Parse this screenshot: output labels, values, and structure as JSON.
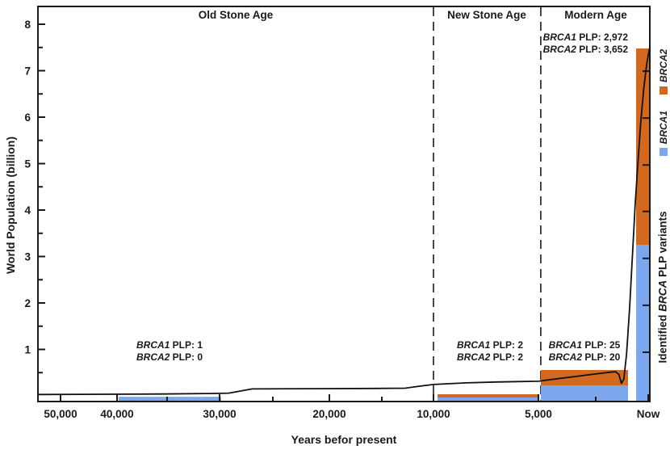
{
  "figure": {
    "era_labels": {
      "old": "Old Stone Age",
      "new": "New Stone Age",
      "modern": "Modern Age"
    }
  },
  "axes": {
    "x_title": "Years befor present",
    "y_title": "World Population (billion)",
    "y2_prefix": "Identified ",
    "y2_italic": "BRCA",
    "y2_suffix": " PLP variants"
  },
  "legend": [
    {
      "label": "BRCA2",
      "color": "#d2691e"
    },
    {
      "label": "BRCA1",
      "color": "#7da7ec"
    }
  ],
  "annotations": {
    "old": {
      "line1": {
        "gene": "BRCA1",
        "text": " PLP: 1"
      },
      "line2": {
        "gene": "BRCA2",
        "text": " PLP: 0"
      }
    },
    "new": {
      "line1": {
        "gene": "BRCA1",
        "text": " PLP: 2"
      },
      "line2": {
        "gene": "BRCA2",
        "text": " PLP: 2"
      }
    },
    "modern": {
      "line1": {
        "gene": "BRCA1",
        "text": " PLP: 25"
      },
      "line2": {
        "gene": "BRCA2",
        "text": " PLP: 20"
      }
    },
    "now": {
      "line1": {
        "gene": "BRCA1",
        "text": " PLP: 2,972"
      },
      "line2": {
        "gene": "BRCA2",
        "text": " PLP: 3,652"
      }
    }
  },
  "chart_data": {
    "type": "bar",
    "title": "",
    "xlabel": "Years befor present",
    "ylabel": "World Population (billion)",
    "y2label": "Identified BRCA PLP variants",
    "ylim": [
      -0.12,
      8.45
    ],
    "grid": false,
    "legend_position": "right-rotated",
    "eras": [
      {
        "name": "Old Stone Age",
        "brca1_plp": 1,
        "brca2_plp": 0
      },
      {
        "name": "New Stone Age",
        "brca1_plp": 2,
        "brca2_plp": 2
      },
      {
        "name": "Modern Age",
        "brca1_plp": 25,
        "brca2_plp": 20
      },
      {
        "name": "Now (total identified)",
        "brca1_plp": 2972,
        "brca2_plp": 3652
      }
    ],
    "series_colors": {
      "BRCA1": "#7da7ec",
      "BRCA2": "#d2691e"
    },
    "x_ticks": [
      {
        "pos": 0.0369,
        "label": "50,000",
        "major": true
      },
      {
        "pos": 0.1293,
        "label": "40,000",
        "major": true
      },
      {
        "pos": 0.2111,
        "label": "",
        "major": false
      },
      {
        "pos": 0.2968,
        "label": "30,000",
        "major": true
      },
      {
        "pos": 0.3839,
        "label": "",
        "major": false
      },
      {
        "pos": 0.4763,
        "label": "20,000",
        "major": true
      },
      {
        "pos": 0.562,
        "label": "",
        "major": false
      },
      {
        "pos": 0.6464,
        "label": "10,000",
        "major": true
      },
      {
        "pos": 0.8179,
        "label": "5,000",
        "major": true
      },
      {
        "pos": 0.9116,
        "label": "",
        "major": false
      },
      {
        "pos": 0.9974,
        "label": "Now",
        "major": true
      }
    ],
    "y_ticks": [
      1,
      2,
      3,
      4,
      5,
      6,
      7,
      8
    ],
    "y_minor_ticks": [
      0.5,
      1.5,
      2.5,
      3.5,
      4.5,
      5.5,
      6.5,
      7.5
    ],
    "y2_ticks": [
      0.94,
      1.95,
      2.96,
      3.97,
      4.97,
      5.98,
      6.99
    ],
    "era_divider_pos": [
      0.6464,
      0.8218
    ],
    "bars_bottom": -0.113,
    "bars": [
      {
        "id": "old-stone",
        "brca1_plp": 1,
        "brca2_plp": 0,
        "x1": 0.1319,
        "x2": 0.2995,
        "brca1_top": -0.02,
        "brca2_top": -0.02
      },
      {
        "id": "new-stone",
        "brca1_plp": 2,
        "brca2_plp": 2,
        "x1": 0.6531,
        "x2": 0.8192,
        "brca1_top": -0.035,
        "brca2_top": 0.035
      },
      {
        "id": "modern",
        "brca1_plp": 25,
        "brca2_plp": 20,
        "x1": 0.8218,
        "x2": 0.9644,
        "brca1_top": 0.226,
        "brca2_top": 0.557
      },
      {
        "id": "now",
        "brca1_plp": 2972,
        "brca2_plp": 3652,
        "x1": 0.9776,
        "x2": 1.0,
        "brca1_top": 3.252,
        "brca2_top": 7.478
      }
    ],
    "population_line_billion": [
      [
        0.0,
        0.03
      ],
      [
        0.2,
        0.04
      ],
      [
        0.28,
        0.05
      ],
      [
        0.312,
        0.06
      ],
      [
        0.35,
        0.15
      ],
      [
        0.45,
        0.155
      ],
      [
        0.55,
        0.16
      ],
      [
        0.6,
        0.165
      ],
      [
        0.625,
        0.21
      ],
      [
        0.6464,
        0.245
      ],
      [
        0.7,
        0.28
      ],
      [
        0.75,
        0.3
      ],
      [
        0.8179,
        0.315
      ],
      [
        0.85,
        0.37
      ],
      [
        0.88,
        0.42
      ],
      [
        0.91,
        0.47
      ],
      [
        0.935,
        0.51
      ],
      [
        0.944,
        0.52
      ],
      [
        0.9495,
        0.46
      ],
      [
        0.9535,
        0.27
      ],
      [
        0.9575,
        0.36
      ],
      [
        0.962,
        0.9
      ],
      [
        0.967,
        1.9
      ],
      [
        0.9715,
        3.0
      ],
      [
        0.976,
        4.1
      ],
      [
        0.9805,
        5.0
      ],
      [
        0.985,
        5.85
      ],
      [
        0.99,
        6.6
      ],
      [
        0.995,
        7.15
      ],
      [
        0.9995,
        7.48
      ]
    ]
  }
}
